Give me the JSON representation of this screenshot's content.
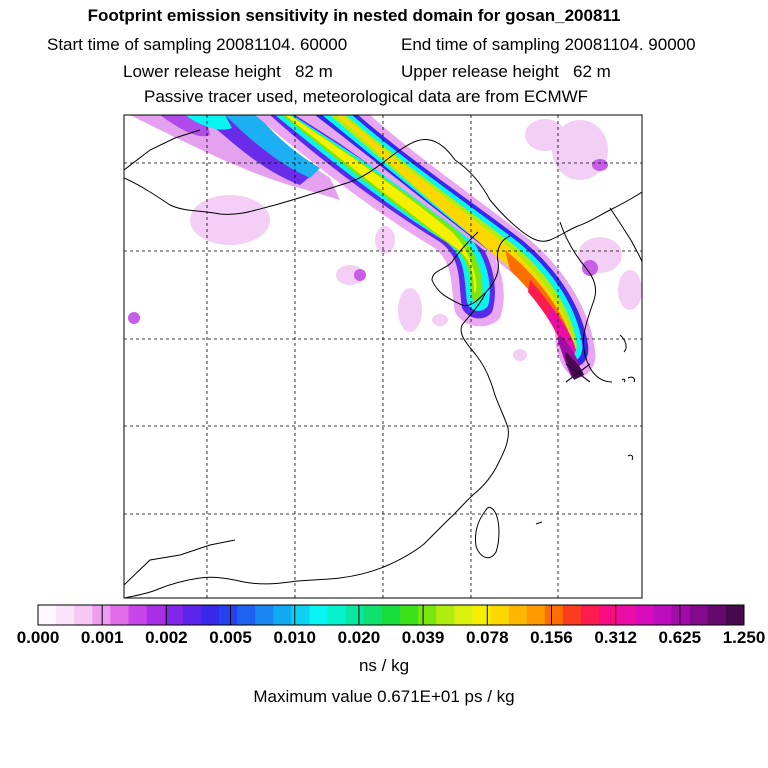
{
  "header": {
    "title": "Footprint emission sensitivity in nested domain for gosan_200811",
    "start_label": "Start time of sampling 20081104. 60000",
    "end_label": "End time of sampling 20081104. 90000",
    "lower_label": "Lower release height   82 m",
    "upper_label": "Upper release height   62 m",
    "note": "Passive tracer used, meteorological data are from ECMWF"
  },
  "chart_data": {
    "type": "heatmap",
    "title": "Footprint emission sensitivity in nested domain for gosan_200811",
    "colorbar_ticks": [
      "0.000",
      "0.001",
      "0.002",
      "0.005",
      "0.010",
      "0.020",
      "0.039",
      "0.078",
      "0.156",
      "0.312",
      "0.625",
      "1.250"
    ],
    "colorbar_colors": [
      "#fef7fe",
      "#fbe3fb",
      "#f6c8f6",
      "#ee9df0",
      "#df6ee8",
      "#c746e8",
      "#a82ee8",
      "#8226ea",
      "#5a24ec",
      "#3828ea",
      "#2540ee",
      "#1f62f2",
      "#1a86f2",
      "#0eaaf2",
      "#0bd2f2",
      "#0af4f2",
      "#07f2cc",
      "#08e8a2",
      "#10e070",
      "#16de3e",
      "#3ee01c",
      "#7ae610",
      "#b0ec10",
      "#dcf010",
      "#f6f000",
      "#fcd800",
      "#fcb800",
      "#fc9a00",
      "#fc6e00",
      "#fc3c20",
      "#fc1c50",
      "#f80c84",
      "#ec0ca6",
      "#d80cbc",
      "#bc0cbc",
      "#a00ca8",
      "#820a8c",
      "#640a6e",
      "#460a4c"
    ],
    "units": "ns / kg",
    "max_value_label": "Maximum value  0.671E+01 ps / kg",
    "receptor_marker": "X at Gosan"
  }
}
